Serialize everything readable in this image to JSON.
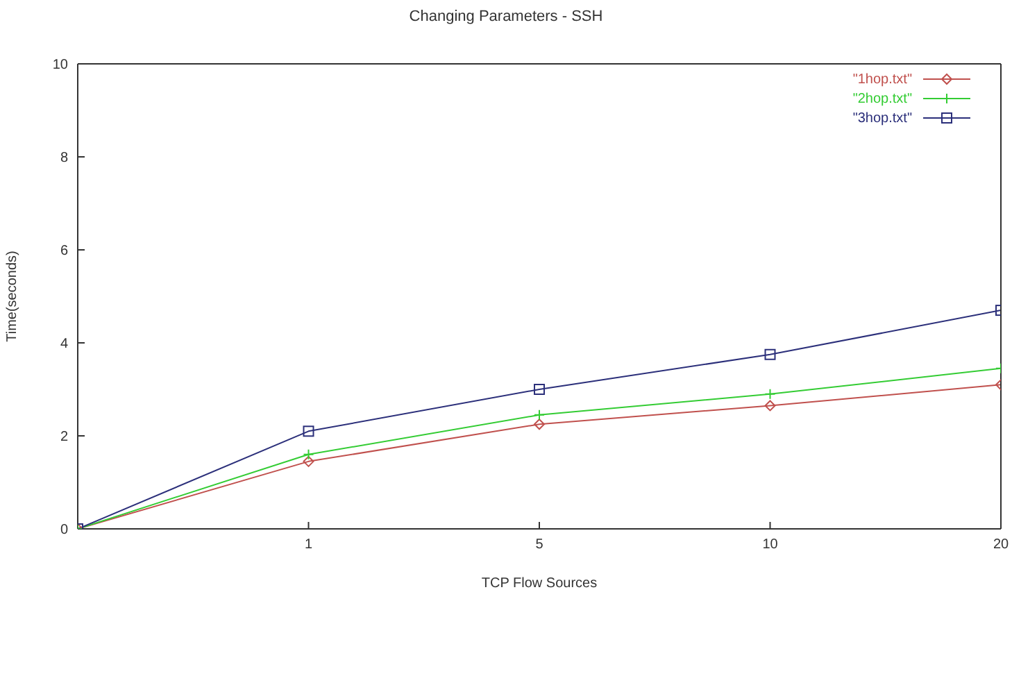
{
  "chart_data": {
    "type": "line",
    "title": "Changing Parameters - SSH",
    "xlabel": "TCP Flow Sources",
    "ylabel": "Time(seconds)",
    "categories": [
      null,
      "1",
      "5",
      "10",
      "20"
    ],
    "series": [
      {
        "name": "\"1hop.txt\"",
        "color": "#c0504d",
        "marker": "diamond",
        "values": [
          0,
          1.45,
          2.25,
          2.65,
          3.1
        ]
      },
      {
        "name": "\"2hop.txt\"",
        "color": "#33cc33",
        "marker": "cross",
        "values": [
          0,
          1.6,
          2.45,
          2.9,
          3.45
        ]
      },
      {
        "name": "\"3hop.txt\"",
        "color": "#2b2f7a",
        "marker": "square",
        "values": [
          0,
          2.1,
          3.0,
          3.75,
          4.7
        ]
      }
    ],
    "ylim": [
      0,
      10
    ],
    "yticks": [
      0,
      2,
      4,
      6,
      8,
      10
    ],
    "grid": false,
    "legend": "top right"
  }
}
